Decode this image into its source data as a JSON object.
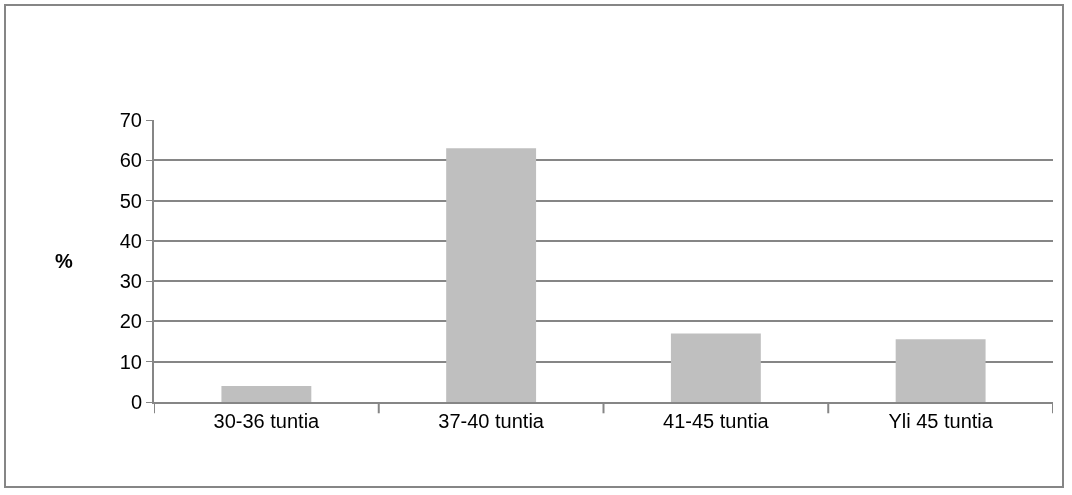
{
  "chart_data": {
    "type": "bar",
    "ylabel": "%",
    "categories": [
      "30-36 tuntia",
      "37-40 tuntia",
      "41-45 tuntia",
      "Yli 45 tuntia"
    ],
    "values": [
      4,
      63,
      17,
      15.6
    ],
    "color": "#bfbfbf",
    "ylim": [
      0,
      70
    ],
    "yticks": [
      0,
      10,
      20,
      30,
      40,
      50,
      60,
      70
    ],
    "grid": "y",
    "legend": false
  }
}
